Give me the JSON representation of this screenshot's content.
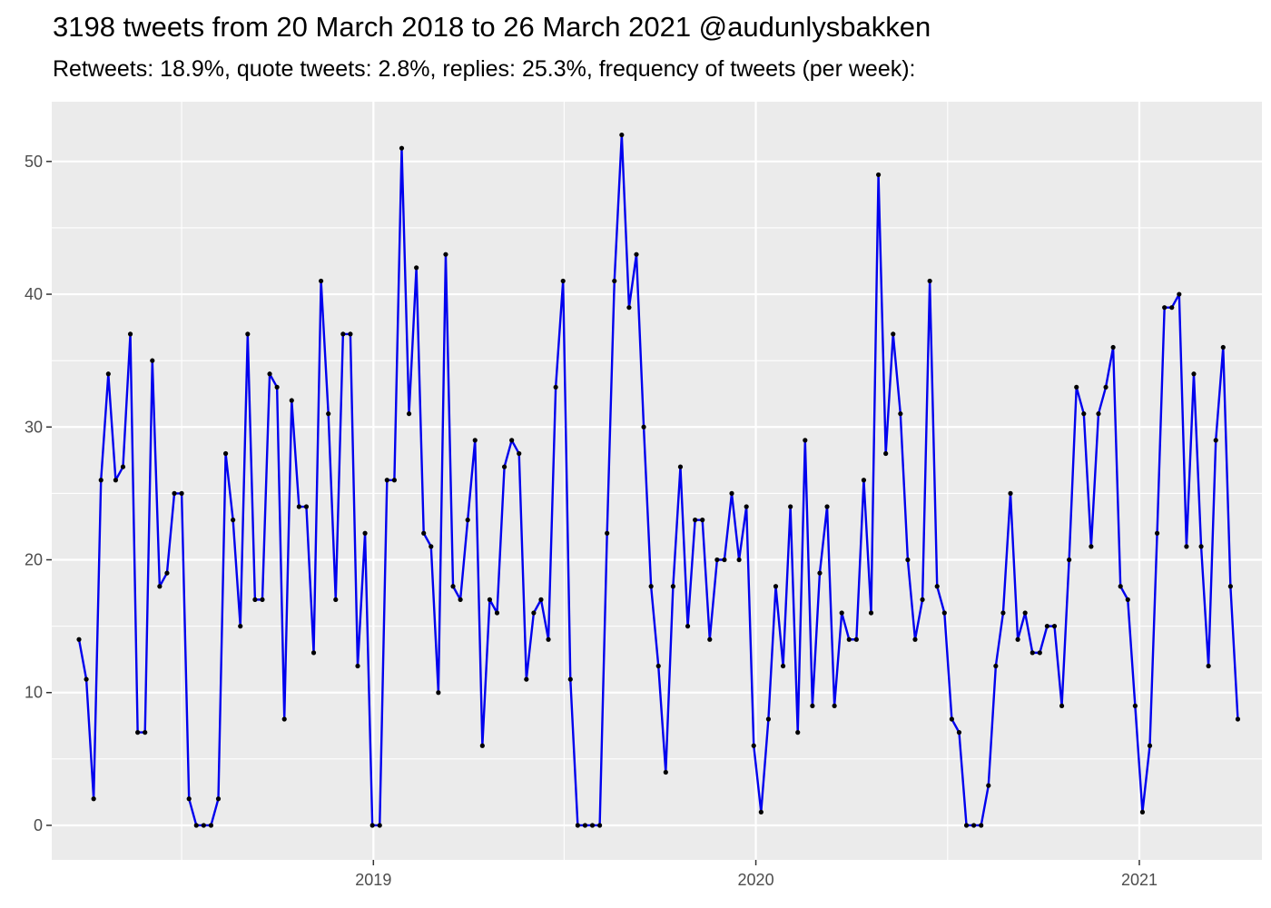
{
  "title": "3198 tweets from 20 March 2018 to 26 March 2021 @audunlysbakken",
  "subtitle": "Retweets: 18.9%, quote tweets: 2.8%, replies: 25.3%, frequency of tweets (per week):",
  "colors": {
    "panel": "#ebebeb",
    "grid": "#ffffff",
    "line": "#0000ee",
    "point": "#000000"
  },
  "chart_data": {
    "type": "line",
    "title": "3198 tweets from 20 March 2018 to 26 March 2021 @audunlysbakken",
    "subtitle": "Retweets: 18.9%, quote tweets: 2.8%, replies: 25.3%, frequency of tweets (per week):",
    "xlabel": "",
    "ylabel": "",
    "x_start": "2018-03-26",
    "x_step": "1 week",
    "x_ticks": [
      "2019",
      "2020",
      "2021"
    ],
    "y_ticks": [
      0,
      10,
      20,
      30,
      40,
      50
    ],
    "ylim": [
      -2.6,
      54.5
    ],
    "xlim": [
      "2018-02-28",
      "2021-04-28"
    ],
    "grid": true,
    "legend": "none",
    "values": [
      14,
      11,
      2,
      26,
      34,
      26,
      27,
      37,
      7,
      7,
      35,
      18,
      19,
      25,
      25,
      2,
      0,
      0,
      0,
      2,
      28,
      23,
      15,
      37,
      17,
      17,
      34,
      33,
      8,
      32,
      24,
      24,
      13,
      41,
      31,
      17,
      37,
      37,
      12,
      22,
      0,
      0,
      26,
      26,
      51,
      31,
      42,
      22,
      21,
      10,
      43,
      18,
      17,
      23,
      29,
      6,
      17,
      16,
      27,
      29,
      28,
      11,
      16,
      17,
      14,
      33,
      41,
      11,
      0,
      0,
      0,
      0,
      22,
      41,
      52,
      39,
      43,
      30,
      18,
      12,
      4,
      18,
      27,
      15,
      23,
      23,
      14,
      20,
      20,
      25,
      20,
      24,
      6,
      1,
      8,
      18,
      12,
      24,
      7,
      29,
      9,
      19,
      24,
      9,
      16,
      14,
      14,
      26,
      16,
      49,
      28,
      37,
      31,
      20,
      14,
      17,
      41,
      18,
      16,
      8,
      7,
      0,
      0,
      0,
      3,
      12,
      16,
      25,
      14,
      16,
      13,
      13,
      15,
      15,
      9,
      20,
      33,
      31,
      21,
      31,
      33,
      36,
      18,
      17,
      9,
      1,
      6,
      22,
      39,
      39,
      40,
      21,
      34,
      21,
      12,
      29,
      36,
      18,
      8
    ]
  }
}
